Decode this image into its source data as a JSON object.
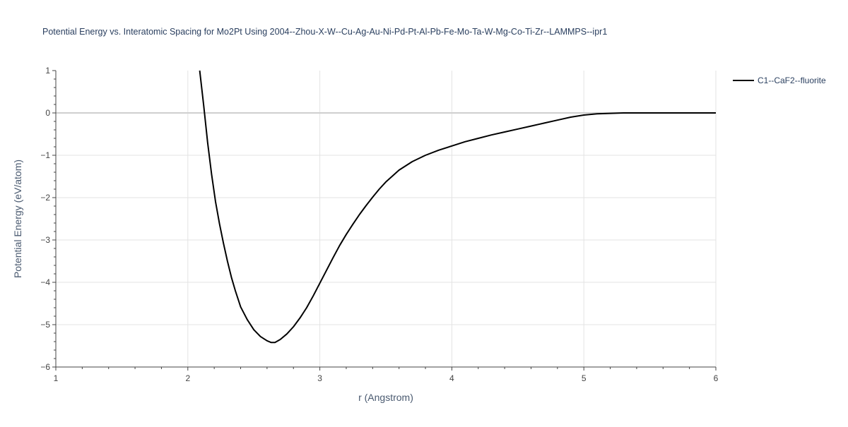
{
  "chart_data": {
    "type": "line",
    "title": "Potential Energy vs. Interatomic Spacing for Mo2Pt Using 2004--Zhou-X-W--Cu-Ag-Au-Ni-Pd-Pt-Al-Pb-Fe-Mo-Ta-W-Mg-Co-Ti-Zr--LAMMPS--ipr1",
    "xlabel": "r (Angstrom)",
    "ylabel": "Potential Energy (eV/atom)",
    "xlim": [
      1,
      6
    ],
    "ylim": [
      -6,
      1
    ],
    "x_ticks": [
      1,
      2,
      3,
      4,
      5,
      6
    ],
    "y_ticks": [
      1,
      0,
      -1,
      -2,
      -3,
      -4,
      -5,
      -6
    ],
    "x_tick_labels": [
      "1",
      "2",
      "3",
      "4",
      "5",
      "6"
    ],
    "y_tick_labels": [
      "1",
      "0",
      "−1",
      "−2",
      "−3",
      "−4",
      "−5",
      "−6"
    ],
    "grid": true,
    "legend_position": "top-right",
    "series": [
      {
        "name": "C1--CaF2--fluorite",
        "color": "#000000",
        "x": [
          2.09,
          2.12,
          2.15,
          2.18,
          2.21,
          2.24,
          2.27,
          2.3,
          2.33,
          2.36,
          2.4,
          2.45,
          2.5,
          2.55,
          2.6,
          2.63,
          2.66,
          2.7,
          2.75,
          2.8,
          2.85,
          2.9,
          2.95,
          3.0,
          3.05,
          3.1,
          3.15,
          3.2,
          3.25,
          3.3,
          3.35,
          3.4,
          3.45,
          3.5,
          3.6,
          3.7,
          3.8,
          3.9,
          4.0,
          4.1,
          4.2,
          4.3,
          4.4,
          4.5,
          4.6,
          4.7,
          4.8,
          4.9,
          5.0,
          5.1,
          5.2,
          5.3,
          5.4,
          5.5,
          5.7,
          6.0
        ],
        "y": [
          1.0,
          0.18,
          -0.7,
          -1.45,
          -2.1,
          -2.62,
          -3.08,
          -3.5,
          -3.88,
          -4.2,
          -4.58,
          -4.88,
          -5.12,
          -5.28,
          -5.38,
          -5.42,
          -5.42,
          -5.35,
          -5.22,
          -5.05,
          -4.84,
          -4.6,
          -4.32,
          -4.02,
          -3.72,
          -3.42,
          -3.13,
          -2.87,
          -2.63,
          -2.4,
          -2.19,
          -1.99,
          -1.8,
          -1.63,
          -1.35,
          -1.15,
          -1.0,
          -0.88,
          -0.78,
          -0.68,
          -0.6,
          -0.52,
          -0.45,
          -0.38,
          -0.31,
          -0.24,
          -0.17,
          -0.1,
          -0.05,
          -0.02,
          -0.01,
          0.0,
          0.0,
          0.0,
          0.0,
          0.0
        ]
      }
    ]
  }
}
